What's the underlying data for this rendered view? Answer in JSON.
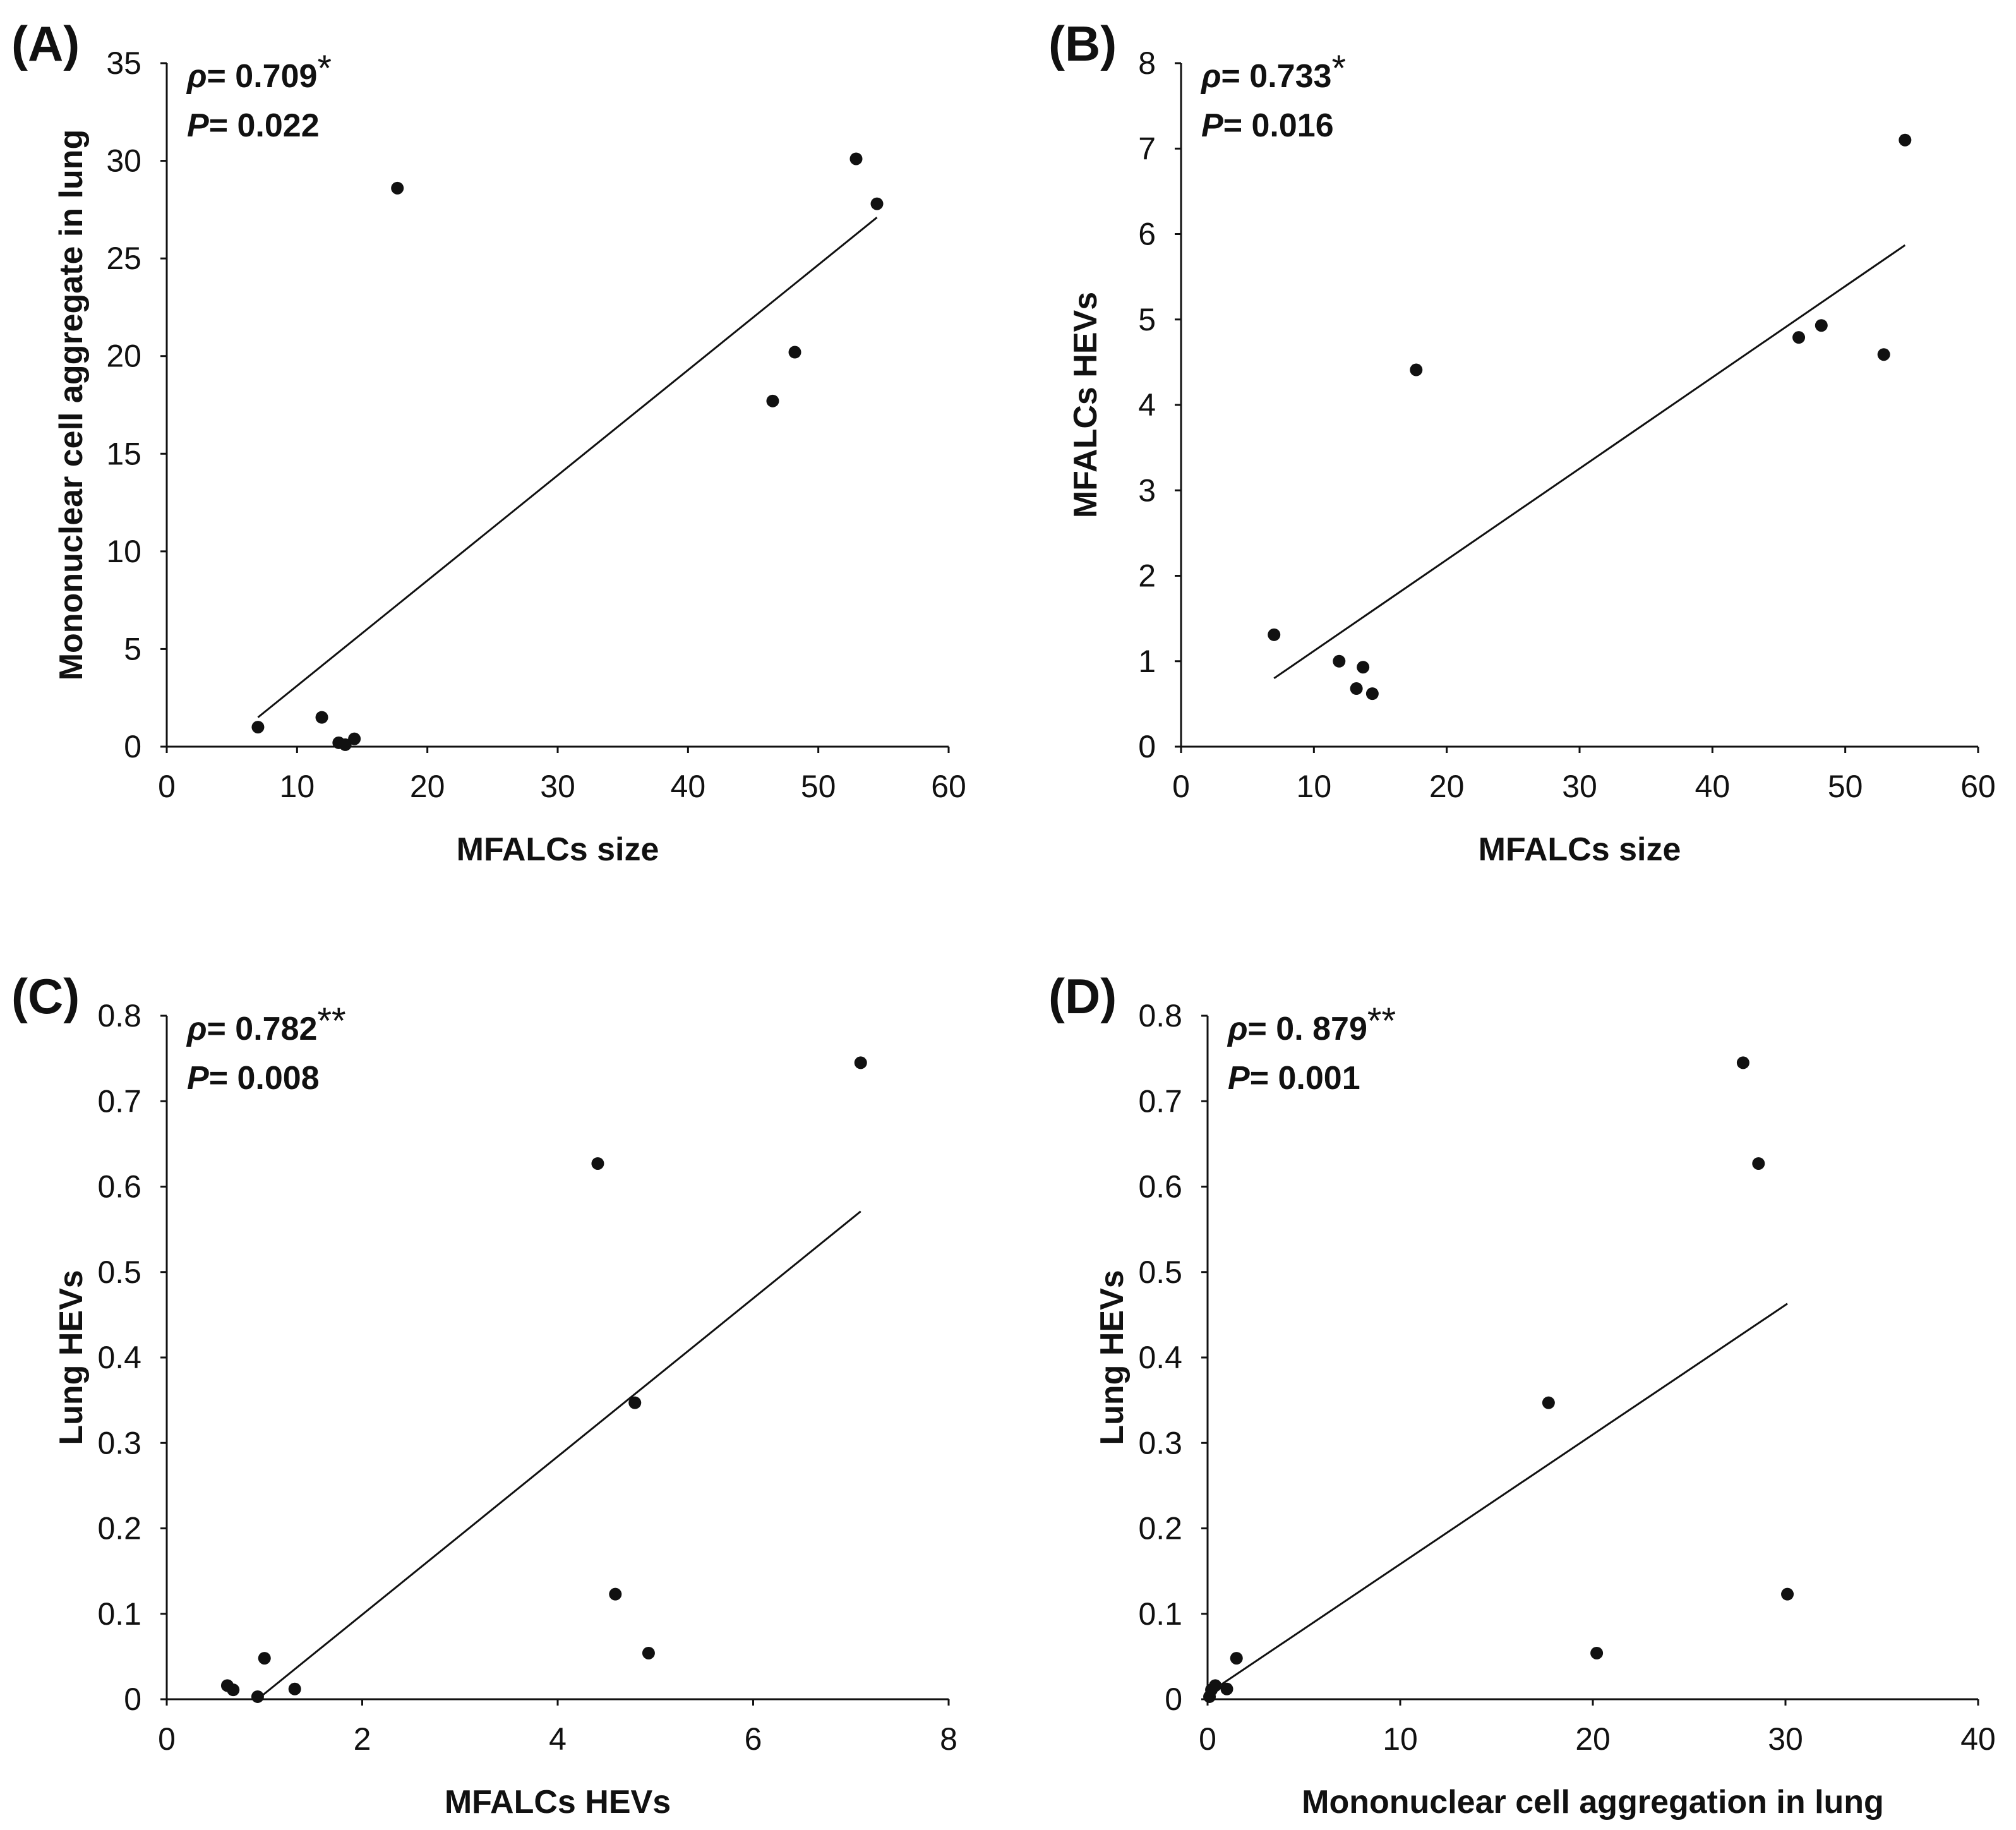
{
  "colors": {
    "background": "#ffffff",
    "ink": "#111111"
  },
  "chart_data": [
    {
      "id": "A",
      "type": "scatter",
      "panel_label": "(A)",
      "xlabel": "MFALCs size",
      "ylabel": "Mononuclear cell aggregate in lung",
      "xlim": [
        0,
        60
      ],
      "ylim": [
        0,
        35
      ],
      "xticks": [
        0,
        10,
        20,
        30,
        40,
        50,
        60
      ],
      "yticks": [
        0,
        5,
        10,
        15,
        20,
        25,
        30,
        35
      ],
      "xtick_labels": [
        "0",
        "10",
        "20",
        "30",
        "40",
        "50",
        "60"
      ],
      "ytick_labels": [
        "0",
        "5",
        "10",
        "15",
        "20",
        "25",
        "30",
        "35"
      ],
      "rho_symbol": "ρ",
      "rho_text": "= 0.709",
      "rho_sig": "*",
      "p_symbol": "P",
      "p_text": "= 0.022",
      "x": [
        7.0,
        11.9,
        13.2,
        13.7,
        14.4,
        17.7,
        46.5,
        48.2,
        52.9,
        54.5
      ],
      "y": [
        1.0,
        1.5,
        0.2,
        0.1,
        0.4,
        28.6,
        17.7,
        20.2,
        30.1,
        27.8
      ],
      "trendline": {
        "x": [
          7.0,
          54.5
        ],
        "y": [
          1.5,
          27.1
        ]
      }
    },
    {
      "id": "B",
      "type": "scatter",
      "panel_label": "(B)",
      "xlabel": "MFALCs size",
      "ylabel": "MFALCs HEVs",
      "xlim": [
        0,
        60
      ],
      "ylim": [
        0,
        8
      ],
      "xticks": [
        0,
        10,
        20,
        30,
        40,
        50,
        60
      ],
      "yticks": [
        0,
        1,
        2,
        3,
        4,
        5,
        6,
        7,
        8
      ],
      "xtick_labels": [
        "0",
        "10",
        "20",
        "30",
        "40",
        "50",
        "60"
      ],
      "ytick_labels": [
        "0",
        "1",
        "2",
        "3",
        "4",
        "5",
        "6",
        "7",
        "8"
      ],
      "rho_symbol": "ρ",
      "rho_text": "= 0.733",
      "rho_sig": "*",
      "p_symbol": "P",
      "p_text": "= 0.016",
      "x": [
        7.0,
        11.9,
        13.2,
        13.7,
        14.4,
        17.7,
        46.5,
        48.2,
        52.9,
        54.5
      ],
      "y": [
        1.31,
        1.0,
        0.68,
        0.93,
        0.62,
        4.41,
        4.79,
        4.93,
        4.59,
        7.1
      ],
      "trendline": {
        "x": [
          7.0,
          54.5
        ],
        "y": [
          0.8,
          5.87
        ]
      }
    },
    {
      "id": "C",
      "type": "scatter",
      "panel_label": "(C)",
      "xlabel": "MFALCs HEVs",
      "ylabel": "Lung HEVs",
      "xlim": [
        0,
        8
      ],
      "ylim": [
        0,
        0.8
      ],
      "xticks": [
        0,
        2,
        4,
        6,
        8
      ],
      "yticks": [
        0,
        0.1,
        0.2,
        0.3,
        0.4,
        0.5,
        0.6,
        0.7,
        0.8
      ],
      "xtick_labels": [
        "0",
        "2",
        "4",
        "6",
        "8"
      ],
      "ytick_labels": [
        "0",
        "0.1",
        "0.2",
        "0.3",
        "0.4",
        "0.5",
        "0.6",
        "0.7",
        "0.8"
      ],
      "rho_symbol": "ρ",
      "rho_text": "= 0.782",
      "rho_sig": "**",
      "p_symbol": "P",
      "p_text": "= 0.008",
      "x": [
        0.62,
        0.68,
        0.93,
        1.0,
        1.31,
        4.41,
        4.59,
        4.79,
        4.93,
        7.1
      ],
      "y": [
        0.016,
        0.011,
        0.003,
        0.048,
        0.012,
        0.627,
        0.123,
        0.347,
        0.054,
        0.745
      ],
      "trendline": {
        "x": [
          0.93,
          7.1
        ],
        "y": [
          0.0,
          0.571
        ]
      }
    },
    {
      "id": "D",
      "type": "scatter",
      "panel_label": "(D)",
      "xlabel": "Mononuclear cell aggregation in lung",
      "ylabel": "Lung HEVs",
      "xlim": [
        0,
        40
      ],
      "ylim": [
        0,
        0.8
      ],
      "xticks": [
        0,
        10,
        20,
        30,
        40
      ],
      "yticks": [
        0,
        0.1,
        0.2,
        0.3,
        0.4,
        0.5,
        0.6,
        0.7,
        0.8
      ],
      "xtick_labels": [
        "0",
        "10",
        "20",
        "30",
        "40"
      ],
      "ytick_labels": [
        "0",
        "0.1",
        "0.2",
        "0.3",
        "0.4",
        "0.5",
        "0.6",
        "0.7",
        "0.8"
      ],
      "rho_symbol": "ρ",
      "rho_text": "= 0. 879",
      "rho_sig": "**",
      "p_symbol": "P",
      "p_text": "= 0.001",
      "x": [
        0.1,
        0.2,
        0.4,
        1.0,
        1.5,
        17.7,
        20.2,
        27.8,
        28.6,
        30.1
      ],
      "y": [
        0.003,
        0.011,
        0.016,
        0.012,
        0.048,
        0.347,
        0.054,
        0.745,
        0.627,
        0.123
      ],
      "trendline": {
        "x": [
          0.1,
          30.1
        ],
        "y": [
          0.008,
          0.463
        ]
      }
    }
  ]
}
